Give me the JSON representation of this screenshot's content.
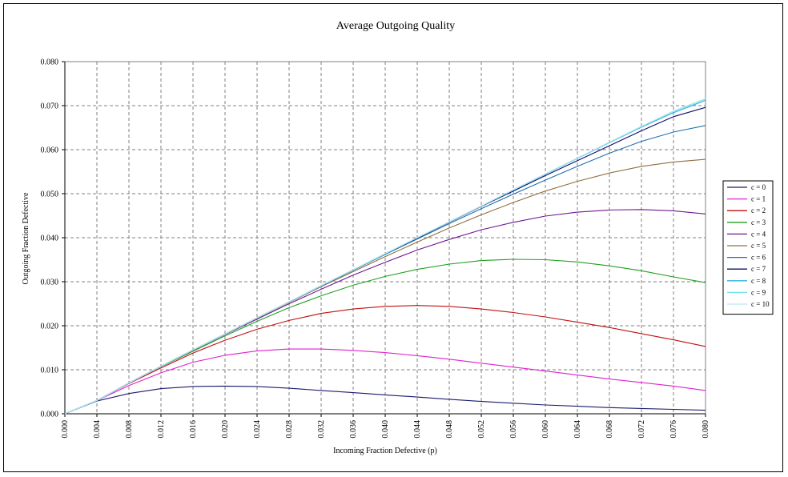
{
  "chart_data": {
    "type": "line",
    "title": "Average Outgoing Quality",
    "xlabel": "Incoming Fraction Defective (p)",
    "ylabel": "Outgoing Fraction Defective",
    "xlim": [
      0.0,
      0.08
    ],
    "ylim": [
      0.0,
      0.08
    ],
    "x_ticks": [
      "0.000",
      "0.004",
      "0.008",
      "0.012",
      "0.016",
      "0.020",
      "0.024",
      "0.028",
      "0.032",
      "0.036",
      "0.040",
      "0.044",
      "0.048",
      "0.052",
      "0.056",
      "0.060",
      "0.064",
      "0.068",
      "0.072",
      "0.076",
      "0.080"
    ],
    "y_ticks": [
      "0.000",
      "0.010",
      "0.020",
      "0.030",
      "0.040",
      "0.050",
      "0.060",
      "0.070",
      "0.080"
    ],
    "grid": true,
    "legend_position": "right",
    "x": [
      0.0,
      0.004,
      0.008,
      0.012,
      0.016,
      0.02,
      0.024,
      0.028,
      0.032,
      0.036,
      0.04,
      0.044,
      0.048,
      0.052,
      0.056,
      0.06,
      0.064,
      0.068,
      0.072,
      0.076,
      0.08
    ],
    "series": [
      {
        "name": "c = 0",
        "color": "#1a1a6e",
        "values": [
          0.0,
          0.0029,
          0.0046,
          0.0057,
          0.0062,
          0.0063,
          0.0062,
          0.0058,
          0.0053,
          0.0048,
          0.0043,
          0.0038,
          0.0033,
          0.0028,
          0.0024,
          0.002,
          0.0017,
          0.0014,
          0.0012,
          0.001,
          0.0008
        ]
      },
      {
        "name": "c = 1",
        "color": "#e020d0",
        "values": [
          0.0,
          0.003,
          0.0064,
          0.0093,
          0.0117,
          0.0133,
          0.0143,
          0.0147,
          0.0147,
          0.0144,
          0.0139,
          0.0132,
          0.0124,
          0.0115,
          0.0106,
          0.0097,
          0.0088,
          0.0079,
          0.0071,
          0.0063,
          0.0053
        ]
      },
      {
        "name": "c = 2",
        "color": "#c01010",
        "values": [
          0.0,
          0.003,
          0.0069,
          0.0104,
          0.0138,
          0.0167,
          0.0192,
          0.0212,
          0.0228,
          0.0238,
          0.0244,
          0.0246,
          0.0244,
          0.0238,
          0.023,
          0.022,
          0.0208,
          0.0196,
          0.0182,
          0.0168,
          0.0153
        ]
      },
      {
        "name": "c = 3",
        "color": "#20a020",
        "values": [
          0.0,
          0.003,
          0.007,
          0.0107,
          0.0142,
          0.0177,
          0.021,
          0.0241,
          0.0268,
          0.0292,
          0.0312,
          0.0328,
          0.034,
          0.0348,
          0.0351,
          0.035,
          0.0345,
          0.0336,
          0.0325,
          0.0311,
          0.0298
        ]
      },
      {
        "name": "c = 4",
        "color": "#701890",
        "values": [
          0.0,
          0.003,
          0.007,
          0.0108,
          0.0144,
          0.018,
          0.0215,
          0.025,
          0.0283,
          0.0315,
          0.0344,
          0.0372,
          0.0396,
          0.0418,
          0.0435,
          0.0449,
          0.0458,
          0.0463,
          0.0464,
          0.0461,
          0.0454
        ]
      },
      {
        "name": "c = 5",
        "color": "#907040",
        "values": [
          0.0,
          0.003,
          0.007,
          0.0108,
          0.0145,
          0.0181,
          0.0217,
          0.0253,
          0.0289,
          0.0323,
          0.0357,
          0.039,
          0.0422,
          0.0452,
          0.048,
          0.0506,
          0.0528,
          0.0547,
          0.0562,
          0.0572,
          0.0578
        ]
      },
      {
        "name": "c = 6",
        "color": "#2070b0",
        "values": [
          0.0,
          0.003,
          0.007,
          0.0108,
          0.0145,
          0.0181,
          0.0218,
          0.0254,
          0.029,
          0.0326,
          0.0362,
          0.0397,
          0.0432,
          0.0466,
          0.0499,
          0.0531,
          0.0562,
          0.0592,
          0.0619,
          0.064,
          0.0655
        ]
      },
      {
        "name": "c = 7",
        "color": "#10106a",
        "values": [
          0.0,
          0.003,
          0.007,
          0.0108,
          0.0145,
          0.0181,
          0.0218,
          0.0254,
          0.0291,
          0.0327,
          0.0363,
          0.0399,
          0.0435,
          0.0471,
          0.0506,
          0.0541,
          0.0575,
          0.0609,
          0.0643,
          0.0675,
          0.0696
        ]
      },
      {
        "name": "c = 8",
        "color": "#30b0e0",
        "values": [
          0.0,
          0.003,
          0.007,
          0.0108,
          0.0145,
          0.0181,
          0.0218,
          0.0254,
          0.0291,
          0.0327,
          0.0363,
          0.04,
          0.0436,
          0.0472,
          0.0508,
          0.0544,
          0.058,
          0.0616,
          0.0651,
          0.0684,
          0.0712
        ]
      },
      {
        "name": "c = 9",
        "color": "#70e0f0",
        "values": [
          0.0,
          0.003,
          0.007,
          0.0108,
          0.0145,
          0.0181,
          0.0218,
          0.0254,
          0.0291,
          0.0327,
          0.0364,
          0.04,
          0.0436,
          0.0472,
          0.0509,
          0.0545,
          0.0581,
          0.0617,
          0.0653,
          0.0687,
          0.0715
        ]
      },
      {
        "name": "c = 10",
        "color": "#b8e8f0",
        "values": [
          0.0,
          0.003,
          0.007,
          0.0108,
          0.0145,
          0.0181,
          0.0218,
          0.0254,
          0.0291,
          0.0327,
          0.0364,
          0.04,
          0.0436,
          0.0472,
          0.0509,
          0.0545,
          0.0581,
          0.0617,
          0.0653,
          0.0688,
          0.0716
        ]
      }
    ]
  }
}
